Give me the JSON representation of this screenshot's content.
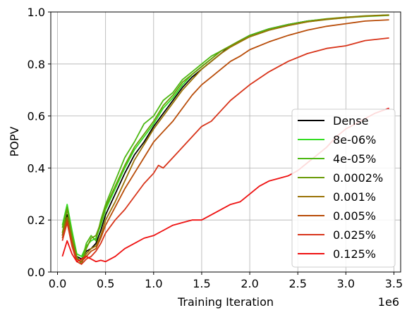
{
  "chart_data": {
    "type": "line",
    "xlabel": "Training Iteration",
    "ylabel": "POPV",
    "x_offset_label": "1e6",
    "xlim": [
      -0.07,
      3.57
    ],
    "ylim": [
      0,
      1
    ],
    "xticks": [
      0.0,
      0.5,
      1.0,
      1.5,
      2.0,
      2.5,
      3.0,
      3.5
    ],
    "xtick_labels": [
      "0.0",
      "0.5",
      "1.0",
      "1.5",
      "2.0",
      "2.5",
      "3.0",
      "3.5"
    ],
    "yticks": [
      0.0,
      0.2,
      0.4,
      0.6,
      0.8,
      1.0
    ],
    "ytick_labels": [
      "0.0",
      "0.2",
      "0.4",
      "0.6",
      "0.8",
      "1.0"
    ],
    "grid": true,
    "legend_position": "lower-right",
    "series": [
      {
        "name": "Dense",
        "color": "#000000",
        "points": [
          [
            0.05,
            0.14
          ],
          [
            0.1,
            0.22
          ],
          [
            0.15,
            0.12
          ],
          [
            0.2,
            0.06
          ],
          [
            0.25,
            0.05
          ],
          [
            0.3,
            0.08
          ],
          [
            0.35,
            0.09
          ],
          [
            0.4,
            0.11
          ],
          [
            0.45,
            0.16
          ],
          [
            0.5,
            0.22
          ],
          [
            0.6,
            0.3
          ],
          [
            0.7,
            0.38
          ],
          [
            0.8,
            0.45
          ],
          [
            0.9,
            0.5
          ],
          [
            1.0,
            0.56
          ],
          [
            1.1,
            0.61
          ],
          [
            1.2,
            0.66
          ],
          [
            1.3,
            0.71
          ],
          [
            1.4,
            0.75
          ],
          [
            1.5,
            0.78
          ],
          [
            1.6,
            0.81
          ],
          [
            1.7,
            0.84
          ],
          [
            1.8,
            0.87
          ],
          [
            1.9,
            0.89
          ],
          [
            2.0,
            0.91
          ],
          [
            2.2,
            0.935
          ],
          [
            2.4,
            0.952
          ],
          [
            2.6,
            0.965
          ],
          [
            2.8,
            0.973
          ],
          [
            3.0,
            0.979
          ],
          [
            3.2,
            0.984
          ],
          [
            3.45,
            0.988
          ]
        ]
      },
      {
        "name": "8e-06%",
        "color": "#33dd22",
        "points": [
          [
            0.05,
            0.18
          ],
          [
            0.1,
            0.26
          ],
          [
            0.15,
            0.16
          ],
          [
            0.2,
            0.07
          ],
          [
            0.25,
            0.06
          ],
          [
            0.3,
            0.1
          ],
          [
            0.35,
            0.12
          ],
          [
            0.4,
            0.13
          ],
          [
            0.45,
            0.18
          ],
          [
            0.5,
            0.24
          ],
          [
            0.6,
            0.32
          ],
          [
            0.7,
            0.4
          ],
          [
            0.8,
            0.47
          ],
          [
            0.9,
            0.52
          ],
          [
            1.0,
            0.57
          ],
          [
            1.1,
            0.63
          ],
          [
            1.2,
            0.67
          ],
          [
            1.3,
            0.72
          ],
          [
            1.4,
            0.76
          ],
          [
            1.5,
            0.79
          ],
          [
            1.6,
            0.82
          ],
          [
            1.7,
            0.85
          ],
          [
            1.8,
            0.87
          ],
          [
            1.9,
            0.89
          ],
          [
            2.0,
            0.905
          ],
          [
            2.2,
            0.93
          ],
          [
            2.4,
            0.95
          ],
          [
            2.6,
            0.963
          ],
          [
            2.8,
            0.972
          ],
          [
            3.0,
            0.978
          ],
          [
            3.2,
            0.983
          ],
          [
            3.45,
            0.987
          ]
        ]
      },
      {
        "name": "4e-05%",
        "color": "#4cb812",
        "points": [
          [
            0.05,
            0.17
          ],
          [
            0.1,
            0.25
          ],
          [
            0.15,
            0.13
          ],
          [
            0.2,
            0.05
          ],
          [
            0.25,
            0.04
          ],
          [
            0.3,
            0.11
          ],
          [
            0.35,
            0.14
          ],
          [
            0.4,
            0.12
          ],
          [
            0.45,
            0.2
          ],
          [
            0.5,
            0.26
          ],
          [
            0.6,
            0.35
          ],
          [
            0.7,
            0.44
          ],
          [
            0.8,
            0.5
          ],
          [
            0.9,
            0.57
          ],
          [
            1.0,
            0.6
          ],
          [
            1.1,
            0.66
          ],
          [
            1.2,
            0.69
          ],
          [
            1.3,
            0.74
          ],
          [
            1.4,
            0.77
          ],
          [
            1.5,
            0.8
          ],
          [
            1.6,
            0.83
          ],
          [
            1.7,
            0.85
          ],
          [
            1.8,
            0.87
          ],
          [
            1.9,
            0.89
          ],
          [
            2.0,
            0.91
          ],
          [
            2.2,
            0.935
          ],
          [
            2.4,
            0.952
          ],
          [
            2.6,
            0.965
          ],
          [
            2.8,
            0.974
          ],
          [
            3.0,
            0.98
          ],
          [
            3.2,
            0.985
          ],
          [
            3.45,
            0.989
          ]
        ]
      },
      {
        "name": "0.0002%",
        "color": "#6a9a07",
        "points": [
          [
            0.05,
            0.15
          ],
          [
            0.1,
            0.24
          ],
          [
            0.15,
            0.14
          ],
          [
            0.2,
            0.06
          ],
          [
            0.25,
            0.03
          ],
          [
            0.3,
            0.09
          ],
          [
            0.35,
            0.13
          ],
          [
            0.4,
            0.14
          ],
          [
            0.45,
            0.19
          ],
          [
            0.5,
            0.25
          ],
          [
            0.6,
            0.33
          ],
          [
            0.7,
            0.41
          ],
          [
            0.8,
            0.48
          ],
          [
            0.9,
            0.53
          ],
          [
            1.0,
            0.58
          ],
          [
            1.1,
            0.64
          ],
          [
            1.2,
            0.68
          ],
          [
            1.3,
            0.73
          ],
          [
            1.4,
            0.76
          ],
          [
            1.5,
            0.79
          ],
          [
            1.6,
            0.82
          ],
          [
            1.7,
            0.85
          ],
          [
            1.8,
            0.87
          ],
          [
            1.9,
            0.89
          ],
          [
            2.0,
            0.905
          ],
          [
            2.2,
            0.93
          ],
          [
            2.4,
            0.948
          ],
          [
            2.6,
            0.962
          ],
          [
            2.8,
            0.971
          ],
          [
            3.0,
            0.978
          ],
          [
            3.2,
            0.984
          ],
          [
            3.45,
            0.988
          ]
        ]
      },
      {
        "name": "0.001%",
        "color": "#9a7206",
        "points": [
          [
            0.05,
            0.14
          ],
          [
            0.1,
            0.21
          ],
          [
            0.15,
            0.12
          ],
          [
            0.2,
            0.05
          ],
          [
            0.25,
            0.04
          ],
          [
            0.3,
            0.07
          ],
          [
            0.35,
            0.09
          ],
          [
            0.4,
            0.1
          ],
          [
            0.45,
            0.14
          ],
          [
            0.5,
            0.2
          ],
          [
            0.6,
            0.27
          ],
          [
            0.7,
            0.35
          ],
          [
            0.8,
            0.43
          ],
          [
            0.9,
            0.49
          ],
          [
            1.0,
            0.55
          ],
          [
            1.1,
            0.6
          ],
          [
            1.2,
            0.65
          ],
          [
            1.3,
            0.7
          ],
          [
            1.4,
            0.74
          ],
          [
            1.5,
            0.78
          ],
          [
            1.6,
            0.81
          ],
          [
            1.7,
            0.84
          ],
          [
            1.8,
            0.865
          ],
          [
            1.9,
            0.885
          ],
          [
            2.0,
            0.905
          ],
          [
            2.2,
            0.93
          ],
          [
            2.4,
            0.948
          ],
          [
            2.6,
            0.962
          ],
          [
            2.8,
            0.972
          ],
          [
            3.0,
            0.979
          ],
          [
            3.2,
            0.984
          ],
          [
            3.45,
            0.988
          ]
        ]
      },
      {
        "name": "0.005%",
        "color": "#b84c08",
        "points": [
          [
            0.05,
            0.13
          ],
          [
            0.1,
            0.2
          ],
          [
            0.15,
            0.11
          ],
          [
            0.2,
            0.05
          ],
          [
            0.25,
            0.04
          ],
          [
            0.3,
            0.06
          ],
          [
            0.35,
            0.08
          ],
          [
            0.4,
            0.09
          ],
          [
            0.45,
            0.13
          ],
          [
            0.5,
            0.18
          ],
          [
            0.6,
            0.25
          ],
          [
            0.7,
            0.32
          ],
          [
            0.8,
            0.38
          ],
          [
            0.9,
            0.44
          ],
          [
            1.0,
            0.5
          ],
          [
            1.1,
            0.54
          ],
          [
            1.2,
            0.58
          ],
          [
            1.3,
            0.63
          ],
          [
            1.4,
            0.68
          ],
          [
            1.5,
            0.72
          ],
          [
            1.6,
            0.75
          ],
          [
            1.7,
            0.78
          ],
          [
            1.8,
            0.81
          ],
          [
            1.9,
            0.83
          ],
          [
            2.0,
            0.855
          ],
          [
            2.2,
            0.885
          ],
          [
            2.4,
            0.91
          ],
          [
            2.6,
            0.93
          ],
          [
            2.8,
            0.945
          ],
          [
            3.0,
            0.955
          ],
          [
            3.2,
            0.965
          ],
          [
            3.45,
            0.97
          ]
        ]
      },
      {
        "name": "0.025%",
        "color": "#d8341a",
        "points": [
          [
            0.05,
            0.12
          ],
          [
            0.1,
            0.19
          ],
          [
            0.15,
            0.1
          ],
          [
            0.2,
            0.04
          ],
          [
            0.25,
            0.03
          ],
          [
            0.3,
            0.05
          ],
          [
            0.35,
            0.06
          ],
          [
            0.4,
            0.08
          ],
          [
            0.45,
            0.11
          ],
          [
            0.5,
            0.15
          ],
          [
            0.6,
            0.2
          ],
          [
            0.7,
            0.24
          ],
          [
            0.8,
            0.29
          ],
          [
            0.9,
            0.34
          ],
          [
            1.0,
            0.38
          ],
          [
            1.05,
            0.41
          ],
          [
            1.1,
            0.4
          ],
          [
            1.2,
            0.44
          ],
          [
            1.3,
            0.48
          ],
          [
            1.4,
            0.52
          ],
          [
            1.5,
            0.56
          ],
          [
            1.6,
            0.58
          ],
          [
            1.7,
            0.62
          ],
          [
            1.8,
            0.66
          ],
          [
            1.9,
            0.69
          ],
          [
            2.0,
            0.72
          ],
          [
            2.2,
            0.77
          ],
          [
            2.4,
            0.81
          ],
          [
            2.6,
            0.84
          ],
          [
            2.8,
            0.86
          ],
          [
            3.0,
            0.87
          ],
          [
            3.2,
            0.89
          ],
          [
            3.45,
            0.9
          ]
        ]
      },
      {
        "name": "0.125%",
        "color": "#ee1111",
        "points": [
          [
            0.05,
            0.06
          ],
          [
            0.1,
            0.12
          ],
          [
            0.15,
            0.07
          ],
          [
            0.2,
            0.04
          ],
          [
            0.25,
            0.05
          ],
          [
            0.3,
            0.06
          ],
          [
            0.35,
            0.05
          ],
          [
            0.4,
            0.04
          ],
          [
            0.45,
            0.045
          ],
          [
            0.5,
            0.04
          ],
          [
            0.6,
            0.06
          ],
          [
            0.7,
            0.09
          ],
          [
            0.8,
            0.11
          ],
          [
            0.9,
            0.13
          ],
          [
            1.0,
            0.14
          ],
          [
            1.1,
            0.16
          ],
          [
            1.2,
            0.18
          ],
          [
            1.3,
            0.19
          ],
          [
            1.4,
            0.2
          ],
          [
            1.5,
            0.2
          ],
          [
            1.6,
            0.22
          ],
          [
            1.7,
            0.24
          ],
          [
            1.8,
            0.26
          ],
          [
            1.9,
            0.27
          ],
          [
            2.0,
            0.3
          ],
          [
            2.1,
            0.33
          ],
          [
            2.2,
            0.35
          ],
          [
            2.3,
            0.36
          ],
          [
            2.4,
            0.37
          ],
          [
            2.5,
            0.39
          ],
          [
            2.6,
            0.42
          ],
          [
            2.7,
            0.45
          ],
          [
            2.8,
            0.48
          ],
          [
            2.9,
            0.52
          ],
          [
            3.0,
            0.55
          ],
          [
            3.1,
            0.57
          ],
          [
            3.2,
            0.59
          ],
          [
            3.3,
            0.61
          ],
          [
            3.45,
            0.63
          ]
        ]
      }
    ]
  }
}
